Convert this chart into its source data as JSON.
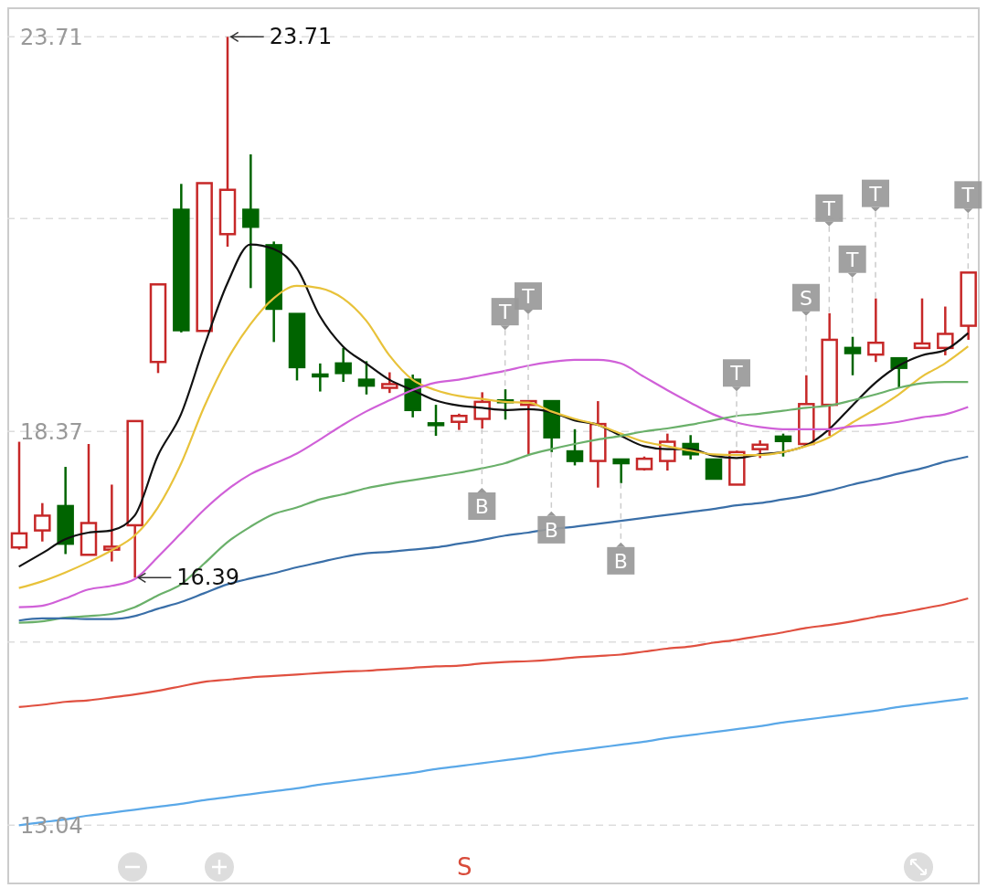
{
  "chart_data": {
    "type": "candlestick",
    "categories": [
      null,
      null,
      null,
      null,
      null,
      null,
      null,
      null,
      null,
      null,
      null,
      null,
      null,
      null,
      null,
      null,
      null,
      null,
      null,
      null,
      null,
      null,
      null,
      null,
      null,
      null,
      null,
      null,
      null,
      null,
      null,
      null,
      null,
      null,
      null,
      null,
      null,
      null,
      null,
      null,
      null,
      null
    ],
    "ohlc": [
      [
        16.8,
        18.23,
        16.77,
        16.99
      ],
      [
        17.03,
        17.4,
        16.88,
        17.23
      ],
      [
        17.36,
        17.89,
        16.71,
        16.85
      ],
      [
        16.7,
        18.2,
        16.7,
        17.13
      ],
      [
        16.77,
        17.65,
        16.61,
        16.81
      ],
      [
        17.1,
        18.51,
        16.39,
        18.51
      ],
      [
        19.31,
        20.36,
        19.16,
        20.36
      ],
      [
        21.37,
        21.72,
        19.71,
        19.74
      ],
      [
        19.73,
        21.73,
        19.73,
        21.73
      ],
      [
        21.04,
        23.71,
        20.87,
        21.64
      ],
      [
        21.37,
        22.12,
        20.31,
        21.14
      ],
      [
        20.89,
        20.94,
        19.58,
        20.03
      ],
      [
        19.96,
        19.96,
        19.06,
        19.24
      ],
      [
        19.14,
        19.29,
        18.91,
        19.13
      ],
      [
        19.29,
        19.5,
        19.04,
        19.16
      ],
      [
        19.07,
        19.32,
        18.87,
        18.99
      ],
      [
        18.96,
        19.17,
        18.89,
        19.01
      ],
      [
        19.07,
        19.14,
        18.56,
        18.66
      ],
      [
        18.48,
        18.73,
        18.31,
        18.47
      ],
      [
        18.5,
        18.61,
        18.39,
        18.58
      ],
      [
        18.54,
        18.9,
        18.41,
        18.77
      ],
      [
        18.79,
        18.94,
        18.53,
        18.78
      ],
      [
        18.73,
        18.78,
        18.06,
        18.78
      ],
      [
        18.78,
        18.78,
        18.09,
        18.29
      ],
      [
        18.1,
        18.4,
        17.91,
        17.97
      ],
      [
        17.97,
        18.78,
        17.61,
        18.47
      ],
      [
        17.99,
        17.99,
        17.67,
        17.94
      ],
      [
        17.86,
        18.03,
        17.84,
        18.0
      ],
      [
        17.97,
        18.34,
        17.84,
        18.23
      ],
      [
        18.2,
        18.32,
        17.99,
        18.06
      ],
      [
        17.99,
        17.99,
        17.72,
        17.73
      ],
      [
        17.65,
        18.11,
        17.65,
        18.09
      ],
      [
        18.13,
        18.25,
        18.01,
        18.19
      ],
      [
        18.3,
        18.34,
        18.03,
        18.24
      ],
      [
        18.2,
        19.13,
        18.2,
        18.74
      ],
      [
        18.73,
        19.97,
        18.31,
        19.61
      ],
      [
        19.5,
        19.65,
        19.13,
        19.43
      ],
      [
        19.41,
        20.17,
        19.31,
        19.57
      ],
      [
        19.36,
        19.36,
        18.96,
        19.23
      ],
      [
        19.5,
        20.17,
        19.5,
        19.56
      ],
      [
        19.5,
        20.06,
        19.4,
        19.69
      ],
      [
        19.8,
        20.52,
        19.61,
        20.52
      ]
    ],
    "colors": [
      "#c62828",
      "#c62828",
      "#006400",
      "#c62828",
      "#c62828",
      "#c62828",
      "#c62828",
      "#006400",
      "#c62828",
      "#c62828",
      "#006400",
      "#006400",
      "#006400",
      "#006400",
      "#006400",
      "#006400",
      "#c62828",
      "#006400",
      "#006400",
      "#c62828",
      "#c62828",
      "#006400",
      "#c62828",
      "#006400",
      "#006400",
      "#c62828",
      "#006400",
      "#c62828",
      "#c62828",
      "#006400",
      "#006400",
      "#c62828",
      "#c62828",
      "#006400",
      "#c62828",
      "#c62828",
      "#006400",
      "#c62828",
      "#006400",
      "#c62828",
      "#c62828",
      "#c62828"
    ],
    "series": [
      {
        "type": "line",
        "color": "#111111",
        "values": [
          16.54,
          16.72,
          16.91,
          17.0,
          17.03,
          17.23,
          18.04,
          18.6,
          19.52,
          20.37,
          20.9,
          20.84,
          20.58,
          19.93,
          19.52,
          19.29,
          19.07,
          18.93,
          18.79,
          18.72,
          18.69,
          18.66,
          18.67,
          18.63,
          18.52,
          18.46,
          18.31,
          18.17,
          18.13,
          18.13,
          18.04,
          18.01,
          18.06,
          18.09,
          18.18,
          18.4,
          18.72,
          19.03,
          19.26,
          19.4,
          19.47,
          19.7
        ]
      },
      {
        "type": "line",
        "color": "#e8c23a",
        "values": [
          16.25,
          16.34,
          16.46,
          16.6,
          16.76,
          16.96,
          17.34,
          17.93,
          18.7,
          19.34,
          19.82,
          20.17,
          20.34,
          20.31,
          20.17,
          19.87,
          19.4,
          19.07,
          18.93,
          18.85,
          18.81,
          18.77,
          18.76,
          18.64,
          18.54,
          18.46,
          18.34,
          18.23,
          18.17,
          18.11,
          18.06,
          18.05,
          18.05,
          18.09,
          18.17,
          18.29,
          18.49,
          18.67,
          18.87,
          19.11,
          19.29,
          19.52
        ]
      },
      {
        "type": "line",
        "color": "#d060d8",
        "values": [
          15.99,
          16.01,
          16.11,
          16.23,
          16.28,
          16.37,
          16.67,
          16.99,
          17.31,
          17.58,
          17.79,
          17.93,
          18.07,
          18.26,
          18.46,
          18.64,
          18.79,
          18.93,
          19.03,
          19.07,
          19.13,
          19.19,
          19.26,
          19.31,
          19.34,
          19.34,
          19.29,
          19.11,
          18.93,
          18.76,
          18.6,
          18.49,
          18.43,
          18.4,
          18.4,
          18.4,
          18.44,
          18.46,
          18.5,
          18.56,
          18.6,
          18.7
        ]
      },
      {
        "type": "line",
        "color": "#6ab06a",
        "values": [
          15.78,
          15.8,
          15.85,
          15.87,
          15.9,
          15.99,
          16.15,
          16.3,
          16.58,
          16.87,
          17.08,
          17.25,
          17.34,
          17.45,
          17.52,
          17.6,
          17.66,
          17.71,
          17.76,
          17.81,
          17.87,
          17.94,
          18.05,
          18.13,
          18.2,
          18.26,
          18.31,
          18.37,
          18.41,
          18.46,
          18.52,
          18.58,
          18.61,
          18.65,
          18.69,
          18.72,
          18.79,
          18.87,
          18.96,
          19.02,
          19.04,
          19.04
        ]
      },
      {
        "type": "line",
        "color": "#3a6fa8",
        "values": [
          15.81,
          15.84,
          15.84,
          15.83,
          15.83,
          15.87,
          15.97,
          16.06,
          16.18,
          16.3,
          16.38,
          16.45,
          16.53,
          16.6,
          16.67,
          16.72,
          16.74,
          16.77,
          16.8,
          16.85,
          16.9,
          16.96,
          17.0,
          17.05,
          17.08,
          17.12,
          17.16,
          17.2,
          17.24,
          17.28,
          17.32,
          17.37,
          17.4,
          17.45,
          17.5,
          17.57,
          17.65,
          17.72,
          17.8,
          17.87,
          17.96,
          18.03
        ]
      },
      {
        "type": "line",
        "color": "#e05040",
        "values": [
          14.64,
          14.67,
          14.71,
          14.73,
          14.77,
          14.81,
          14.86,
          14.92,
          14.98,
          15.01,
          15.04,
          15.06,
          15.08,
          15.1,
          15.12,
          15.13,
          15.15,
          15.17,
          15.19,
          15.2,
          15.23,
          15.25,
          15.26,
          15.28,
          15.31,
          15.33,
          15.35,
          15.39,
          15.43,
          15.46,
          15.51,
          15.55,
          15.6,
          15.65,
          15.71,
          15.75,
          15.8,
          15.86,
          15.91,
          15.97,
          16.03,
          16.11
        ]
      },
      {
        "type": "line",
        "color": "#5aa8e8",
        "values": [
          13.04,
          13.08,
          13.12,
          13.17,
          13.21,
          13.25,
          13.29,
          13.33,
          13.38,
          13.42,
          13.46,
          13.5,
          13.54,
          13.59,
          13.63,
          13.67,
          13.71,
          13.75,
          13.8,
          13.84,
          13.88,
          13.92,
          13.96,
          14.01,
          14.05,
          14.09,
          14.13,
          14.17,
          14.22,
          14.26,
          14.3,
          14.34,
          14.38,
          14.43,
          14.47,
          14.51,
          14.55,
          14.59,
          14.64,
          14.68,
          14.72,
          14.76
        ]
      }
    ],
    "ylim": [
      12.24,
      24.11
    ],
    "yticks": [
      13.04,
      {
        "value": 15.52,
        "label": null
      },
      18.37,
      {
        "value": 21.25,
        "label": null
      },
      23.71
    ],
    "grid": "y",
    "tick_labels": "y",
    "annotations": [
      "23.71",
      "16.39",
      {
        "text": "B",
        "y": 18.41
      },
      {
        "text": "T",
        "y": 18.94
      },
      {
        "text": "T",
        "y": 18.78
      },
      {
        "text": "B",
        "y": 18.09
      },
      {
        "text": "B",
        "y": 17.67
      },
      {
        "text": "T",
        "y": 18.11
      },
      {
        "text": "S",
        "y": 19.13
      },
      {
        "text": "T",
        "y": 19.97
      },
      {
        "text": "T",
        "y": 19.65
      },
      {
        "text": "T",
        "y": 20.17
      },
      {
        "text": "T",
        "y": 20.52
      },
      "S"
    ]
  }
}
